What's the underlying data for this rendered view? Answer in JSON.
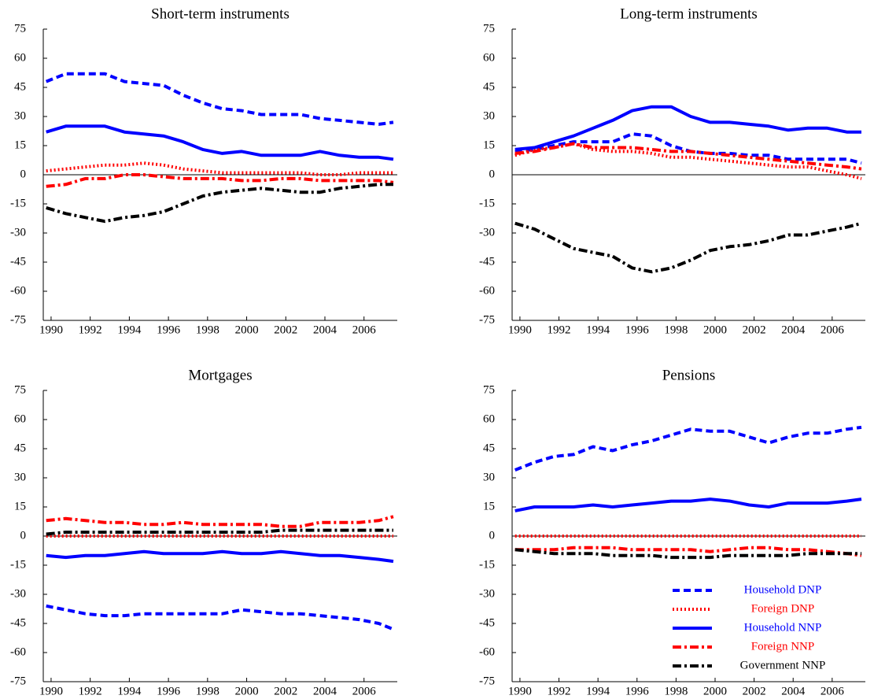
{
  "chart_data": [
    {
      "type": "line",
      "title": "Short-term instruments",
      "x": [
        1989.75,
        1990.75,
        1991.75,
        1992.75,
        1993.75,
        1994.75,
        1995.75,
        1996.75,
        1997.75,
        1998.75,
        1999.75,
        2000.75,
        2001.75,
        2002.75,
        2003.75,
        2004.75,
        2005.75,
        2006.75,
        2007.5
      ],
      "xlim": [
        1989.6,
        2007.7
      ],
      "xticks": [
        1990,
        1992,
        1994,
        1996,
        1998,
        2000,
        2002,
        2004,
        2006
      ],
      "ylim": [
        -75,
        75
      ],
      "yticks": [
        -75,
        -60,
        -45,
        -30,
        -15,
        0,
        15,
        30,
        45,
        60,
        75
      ],
      "series": [
        {
          "name": "Household DNP",
          "color": "#0000ff",
          "linestyle": "dashed",
          "values": [
            48,
            52,
            52,
            52,
            48,
            47,
            46,
            41,
            37,
            34,
            33,
            31,
            31,
            31,
            29,
            28,
            27,
            26,
            27
          ]
        },
        {
          "name": "Foreign DNP",
          "color": "#ff0000",
          "linestyle": "dotted",
          "values": [
            2,
            3,
            4,
            5,
            5,
            6,
            5,
            3,
            2,
            1,
            1,
            1,
            1,
            1,
            0,
            0,
            1,
            1,
            1
          ]
        },
        {
          "name": "Household NNP",
          "color": "#0000ff",
          "linestyle": "solid",
          "values": [
            22,
            25,
            25,
            25,
            22,
            21,
            20,
            17,
            13,
            11,
            12,
            10,
            10,
            10,
            12,
            10,
            9,
            9,
            8
          ]
        },
        {
          "name": "Foreign NNP",
          "color": "#ff0000",
          "linestyle": "dashdot",
          "values": [
            -6,
            -5,
            -2,
            -2,
            0,
            0,
            -1,
            -2,
            -2,
            -2,
            -3,
            -3,
            -2,
            -2,
            -3,
            -3,
            -3,
            -3,
            -4
          ]
        },
        {
          "name": "Government NNP",
          "color": "#000000",
          "linestyle": "dashdot",
          "values": [
            -17,
            -20,
            -22,
            -24,
            -22,
            -21,
            -19,
            -15,
            -11,
            -9,
            -8,
            -7,
            -8,
            -9,
            -9,
            -7,
            -6,
            -5,
            -5
          ]
        }
      ]
    },
    {
      "type": "line",
      "title": "Long-term instruments",
      "x": [
        1989.75,
        1990.75,
        1991.75,
        1992.75,
        1993.75,
        1994.75,
        1995.75,
        1996.75,
        1997.75,
        1998.75,
        1999.75,
        2000.75,
        2001.75,
        2002.75,
        2003.75,
        2004.75,
        2005.75,
        2006.75,
        2007.5
      ],
      "xlim": [
        1989.6,
        2007.7
      ],
      "xticks": [
        1990,
        1992,
        1994,
        1996,
        1998,
        2000,
        2002,
        2004,
        2006
      ],
      "ylim": [
        -75,
        75
      ],
      "yticks": [
        -75,
        -60,
        -45,
        -30,
        -15,
        0,
        15,
        30,
        45,
        60,
        75
      ],
      "series": [
        {
          "name": "Household DNP",
          "color": "#0000ff",
          "linestyle": "dashed",
          "values": [
            12,
            13,
            15,
            17,
            17,
            17,
            21,
            20,
            15,
            12,
            11,
            11,
            10,
            10,
            8,
            8,
            8,
            8,
            6
          ]
        },
        {
          "name": "Foreign DNP",
          "color": "#ff0000",
          "linestyle": "dotted",
          "values": [
            10,
            13,
            14,
            16,
            13,
            12,
            12,
            11,
            9,
            9,
            8,
            7,
            6,
            5,
            4,
            4,
            2,
            0,
            -2
          ]
        },
        {
          "name": "Household NNP",
          "color": "#0000ff",
          "linestyle": "solid",
          "values": [
            13,
            14,
            17,
            20,
            24,
            28,
            33,
            35,
            35,
            30,
            27,
            27,
            26,
            25,
            23,
            24,
            24,
            22,
            22
          ]
        },
        {
          "name": "Foreign NNP",
          "color": "#ff0000",
          "linestyle": "dashdot",
          "values": [
            11,
            12,
            14,
            16,
            14,
            14,
            14,
            13,
            12,
            12,
            11,
            10,
            9,
            8,
            7,
            6,
            5,
            4,
            3
          ]
        },
        {
          "name": "Government NNP",
          "color": "#000000",
          "linestyle": "dashdot",
          "values": [
            -25,
            -28,
            -33,
            -38,
            -40,
            -42,
            -48,
            -50,
            -48,
            -44,
            -39,
            -37,
            -36,
            -34,
            -31,
            -31,
            -29,
            -27,
            -25
          ]
        }
      ]
    },
    {
      "type": "line",
      "title": "Mortgages",
      "x": [
        1989.75,
        1990.75,
        1991.75,
        1992.75,
        1993.75,
        1994.75,
        1995.75,
        1996.75,
        1997.75,
        1998.75,
        1999.75,
        2000.75,
        2001.75,
        2002.75,
        2003.75,
        2004.75,
        2005.75,
        2006.75,
        2007.5
      ],
      "xlim": [
        1989.6,
        2007.7
      ],
      "xticks": [
        1990,
        1992,
        1994,
        1996,
        1998,
        2000,
        2002,
        2004,
        2006
      ],
      "ylim": [
        -75,
        75
      ],
      "yticks": [
        -75,
        -60,
        -45,
        -30,
        -15,
        0,
        15,
        30,
        45,
        60,
        75
      ],
      "series": [
        {
          "name": "Household DNP",
          "color": "#0000ff",
          "linestyle": "dashed",
          "values": [
            -36,
            -38,
            -40,
            -41,
            -41,
            -40,
            -40,
            -40,
            -40,
            -40,
            -38,
            -39,
            -40,
            -40,
            -41,
            -42,
            -43,
            -45,
            -48
          ]
        },
        {
          "name": "Foreign DNP",
          "color": "#ff0000",
          "linestyle": "dotted",
          "values": [
            0,
            0,
            0,
            0,
            0,
            0,
            0,
            0,
            0,
            0,
            0,
            0,
            0,
            0,
            0,
            0,
            0,
            0,
            0
          ]
        },
        {
          "name": "Household NNP",
          "color": "#0000ff",
          "linestyle": "solid",
          "values": [
            -10,
            -11,
            -10,
            -10,
            -9,
            -8,
            -9,
            -9,
            -9,
            -8,
            -9,
            -9,
            -8,
            -9,
            -10,
            -10,
            -11,
            -12,
            -13
          ]
        },
        {
          "name": "Foreign NNP",
          "color": "#ff0000",
          "linestyle": "dashdot",
          "values": [
            8,
            9,
            8,
            7,
            7,
            6,
            6,
            7,
            6,
            6,
            6,
            6,
            5,
            5,
            7,
            7,
            7,
            8,
            10
          ]
        },
        {
          "name": "Government NNP",
          "color": "#000000",
          "linestyle": "dashdot",
          "values": [
            1,
            2,
            2,
            2,
            2,
            2,
            2,
            2,
            2,
            2,
            2,
            2,
            3,
            3,
            3,
            3,
            3,
            3,
            3
          ]
        }
      ]
    },
    {
      "type": "line",
      "title": "Pensions",
      "legend": "lower right",
      "x": [
        1989.75,
        1990.75,
        1991.75,
        1992.75,
        1993.75,
        1994.75,
        1995.75,
        1996.75,
        1997.75,
        1998.75,
        1999.75,
        2000.75,
        2001.75,
        2002.75,
        2003.75,
        2004.75,
        2005.75,
        2006.75,
        2007.5
      ],
      "xlim": [
        1989.6,
        2007.7
      ],
      "xticks": [
        1990,
        1992,
        1994,
        1996,
        1998,
        2000,
        2002,
        2004,
        2006
      ],
      "ylim": [
        -75,
        75
      ],
      "yticks": [
        -75,
        -60,
        -45,
        -30,
        -15,
        0,
        15,
        30,
        45,
        60,
        75
      ],
      "series": [
        {
          "name": "Household DNP",
          "color": "#0000ff",
          "linestyle": "dashed",
          "values": [
            34,
            38,
            41,
            42,
            46,
            44,
            47,
            49,
            52,
            55,
            54,
            54,
            51,
            48,
            51,
            53,
            53,
            55,
            56
          ]
        },
        {
          "name": "Foreign DNP",
          "color": "#ff0000",
          "linestyle": "dotted",
          "values": [
            0,
            0,
            0,
            0,
            0,
            0,
            0,
            0,
            0,
            0,
            0,
            0,
            0,
            0,
            0,
            0,
            0,
            0,
            0
          ]
        },
        {
          "name": "Household NNP",
          "color": "#0000ff",
          "linestyle": "solid",
          "values": [
            13,
            15,
            15,
            15,
            16,
            15,
            16,
            17,
            18,
            18,
            19,
            18,
            16,
            15,
            17,
            17,
            17,
            18,
            19
          ]
        },
        {
          "name": "Foreign NNP",
          "color": "#ff0000",
          "linestyle": "dashdot",
          "values": [
            -7,
            -7,
            -7,
            -6,
            -6,
            -6,
            -7,
            -7,
            -7,
            -7,
            -8,
            -7,
            -6,
            -6,
            -7,
            -7,
            -8,
            -9,
            -10
          ]
        },
        {
          "name": "Government NNP",
          "color": "#000000",
          "linestyle": "dashdot",
          "values": [
            -7,
            -8,
            -9,
            -9,
            -9,
            -10,
            -10,
            -10,
            -11,
            -11,
            -11,
            -10,
            -10,
            -10,
            -10,
            -9,
            -9,
            -9,
            -9
          ]
        }
      ]
    }
  ]
}
